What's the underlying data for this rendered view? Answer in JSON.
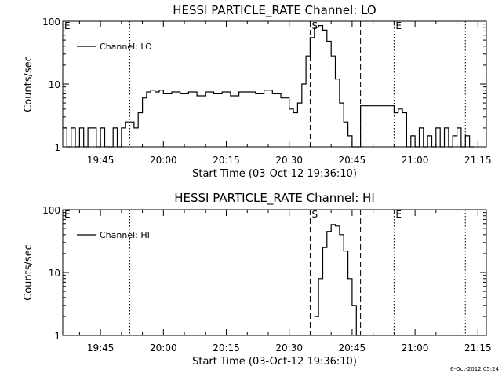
{
  "chart_data": [
    {
      "type": "line",
      "title": "HESSI PARTICLE_RATE Channel: LO",
      "xlabel": "Start Time (03-Oct-12 19:36:10)",
      "ylabel": "Counts/sec",
      "yscale": "log",
      "xlim": [
        "19:36",
        "21:17"
      ],
      "ylim": [
        1,
        100
      ],
      "xticks": [
        "19:45",
        "20:00",
        "20:15",
        "20:30",
        "20:45",
        "21:00",
        "21:15"
      ],
      "yticks": [
        "1",
        "10",
        "100"
      ],
      "legend": "top-left",
      "grid": false,
      "series": [
        {
          "name": "Channel: LO",
          "x": [
            "19:36",
            "19:37",
            "19:38",
            "19:39",
            "19:40",
            "19:41",
            "19:42",
            "19:43",
            "19:44",
            "19:45",
            "19:46",
            "19:47",
            "19:48",
            "19:49",
            "19:50",
            "19:51",
            "19:52",
            "19:53",
            "19:54",
            "19:55",
            "19:56",
            "19:57",
            "19:58",
            "19:59",
            "20:00",
            "20:02",
            "20:04",
            "20:06",
            "20:08",
            "20:10",
            "20:12",
            "20:14",
            "20:16",
            "20:18",
            "20:20",
            "20:22",
            "20:24",
            "20:26",
            "20:28",
            "20:30",
            "20:31",
            "20:32",
            "20:33",
            "20:34",
            "20:35",
            "20:36",
            "20:37",
            "20:38",
            "20:39",
            "20:40",
            "20:41",
            "20:42",
            "20:43",
            "20:44",
            "20:45",
            "20:46",
            "20:47",
            "20:48",
            "20:49",
            "20:50",
            "20:51",
            "20:52",
            "20:53",
            "20:54",
            "20:55",
            "20:56",
            "20:57",
            "20:58",
            "20:59",
            "21:00",
            "21:01",
            "21:02",
            "21:03",
            "21:04",
            "21:05",
            "21:06",
            "21:07",
            "21:08",
            "21:09",
            "21:10",
            "21:11",
            "21:12",
            "21:13"
          ],
          "y": [
            2,
            1,
            2,
            1,
            2,
            1,
            2,
            2,
            1,
            2,
            1,
            1,
            2,
            1,
            2,
            2.5,
            2.5,
            2,
            3.5,
            6,
            7.5,
            8,
            7.5,
            8,
            7,
            7.5,
            7,
            7.5,
            6.5,
            7.5,
            7,
            7.5,
            6.5,
            7.5,
            7.5,
            7,
            8,
            7,
            6,
            4,
            3.5,
            5,
            10,
            28,
            55,
            80,
            85,
            72,
            48,
            28,
            12,
            5,
            2.5,
            1.5,
            1,
            1,
            4.5,
            4.5,
            4.5,
            4.5,
            4.5,
            4.5,
            4.5,
            4.5,
            3.5,
            4,
            3.5,
            1,
            1.5,
            1,
            2,
            1,
            1.5,
            1,
            2,
            1,
            2,
            1,
            1.5,
            2,
            1,
            1.5,
            1
          ]
        }
      ],
      "markers": [
        {
          "label": "E",
          "x": "19:36",
          "style": "dotted"
        },
        {
          "label": "",
          "x": "19:52",
          "style": "dotted"
        },
        {
          "label": "S",
          "x": "20:35",
          "style": "dashed"
        },
        {
          "label": "",
          "x": "20:47",
          "style": "dashed"
        },
        {
          "label": "E",
          "x": "20:55",
          "style": "dotted"
        },
        {
          "label": "",
          "x": "21:12",
          "style": "dotted"
        }
      ]
    },
    {
      "type": "line",
      "title": "HESSI PARTICLE_RATE Channel: HI",
      "xlabel": "Start Time (03-Oct-12 19:36:10)",
      "ylabel": "Counts/sec",
      "yscale": "log",
      "xlim": [
        "19:36",
        "21:17"
      ],
      "ylim": [
        1,
        100
      ],
      "xticks": [
        "19:45",
        "20:00",
        "20:15",
        "20:30",
        "20:45",
        "21:00",
        "21:15"
      ],
      "yticks": [
        "1",
        "10",
        "100"
      ],
      "legend": "top-left",
      "grid": false,
      "series": [
        {
          "name": "Channel: HI",
          "x": [
            "20:36",
            "20:37",
            "20:38",
            "20:39",
            "20:40",
            "20:41",
            "20:42",
            "20:43",
            "20:44",
            "20:45",
            "20:46"
          ],
          "y": [
            2,
            8,
            25,
            45,
            58,
            55,
            40,
            22,
            8,
            3,
            1
          ]
        }
      ],
      "markers": [
        {
          "label": "E",
          "x": "19:36",
          "style": "dotted"
        },
        {
          "label": "",
          "x": "19:52",
          "style": "dotted"
        },
        {
          "label": "S",
          "x": "20:35",
          "style": "dashed"
        },
        {
          "label": "",
          "x": "20:47",
          "style": "dashed"
        },
        {
          "label": "E",
          "x": "20:55",
          "style": "dotted"
        },
        {
          "label": "",
          "x": "21:12",
          "style": "dotted"
        }
      ]
    }
  ],
  "footer": "6-Oct-2012 05:24",
  "colors": {
    "line": "#000000",
    "background": "#ffffff"
  }
}
